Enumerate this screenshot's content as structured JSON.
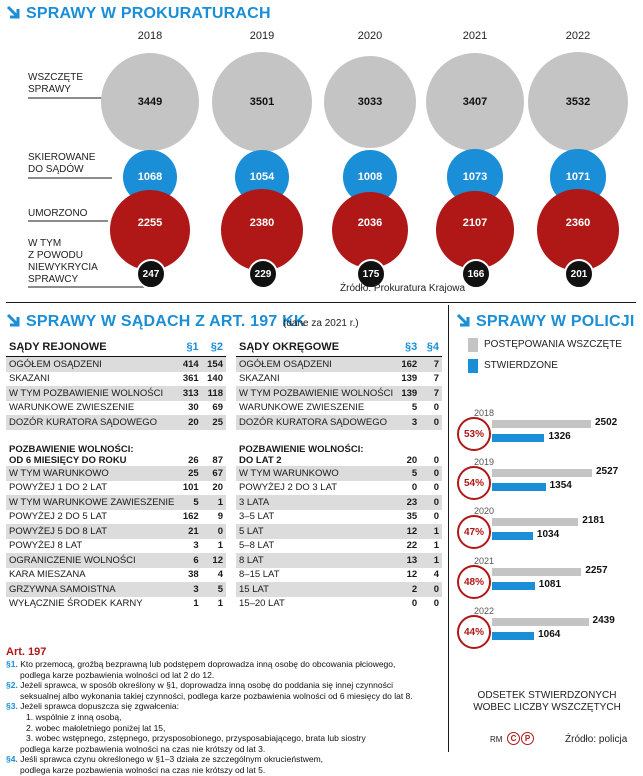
{
  "colors": {
    "accent_blue": "#1a8ed6",
    "red": "#b01717",
    "gray": "#c4c4c4",
    "black": "#111111"
  },
  "top": {
    "title": "SPRAWY W PROKURATURACH",
    "labels": {
      "started": "WSZCZĘTE\nSPRAWY",
      "referred": "SKIEROWANE\nDO SĄDÓW",
      "discontinued": "UMORZONO",
      "no_perpetrator": "W TYM\nZ POWODU\nNIEWYKRYCIA\nSPRAWCY"
    },
    "source": "Źródło: Prokuratura Krajowa"
  },
  "chart_data": [
    {
      "type": "bubble",
      "title": "SPRAWY W PROKURATURACH",
      "categories": [
        "2018",
        "2019",
        "2020",
        "2021",
        "2022"
      ],
      "series": [
        {
          "name": "WSZCZĘTE SPRAWY",
          "values": [
            3449,
            3501,
            3033,
            3407,
            3532
          ]
        },
        {
          "name": "SKIEROWANE DO SĄDÓW",
          "values": [
            1068,
            1054,
            1008,
            1073,
            1071
          ]
        },
        {
          "name": "UMORZONO",
          "values": [
            2255,
            2380,
            2036,
            2107,
            2360
          ]
        },
        {
          "name": "W TYM Z POWODU NIEWYKRYCIA SPRAWCY",
          "values": [
            247,
            229,
            175,
            166,
            201
          ]
        }
      ]
    },
    {
      "type": "bar",
      "title": "SPRAWY W POLICJI",
      "categories": [
        "2018",
        "2019",
        "2020",
        "2021",
        "2022"
      ],
      "series": [
        {
          "name": "POSTĘPOWANIA WSZCZĘTE",
          "values": [
            2502,
            2527,
            2181,
            2257,
            2439
          ]
        },
        {
          "name": "STWIERDZONE",
          "values": [
            1326,
            1354,
            1034,
            1081,
            1064
          ]
        }
      ],
      "annotation_values": [
        "53%",
        "54%",
        "47%",
        "48%",
        "44%"
      ],
      "annotation_label": "ODSETEK STWIERDZONYCH\nWOBEC LICZBY WSZCZĘTYCH",
      "xlim": [
        0,
        2600
      ]
    }
  ],
  "courts": {
    "title": "SPRAWY W SĄDACH Z ART. 197 KK",
    "subtitle": "(dane za 2021 r.)",
    "regional": {
      "header": "SĄDY REJONOWE",
      "cols": [
        "§1",
        "§2"
      ],
      "rows": [
        [
          "OGÓŁEM OSĄDZENI",
          "414",
          "154"
        ],
        [
          "SKAZANI",
          "361",
          "140"
        ],
        [
          "W TYM POZBAWIENIE WOLNOŚCI",
          "313",
          "118"
        ],
        [
          "WARUNKOWE ZWIESZENIE",
          "30",
          "69"
        ],
        [
          "DOZÓR KURATORA SĄDOWEGO",
          "20",
          "25"
        ]
      ],
      "sub_header_1": "POZBAWIENIE WOLNOŚCI:",
      "sub_header_2": "OD 6 MIESIĘCY DO ROKU",
      "sub_values": [
        "26",
        "87"
      ],
      "rows2": [
        [
          "W TYM WARUNKOWO",
          "25",
          "67"
        ],
        [
          "POWYŻEJ 1 DO 2 LAT",
          "101",
          "20"
        ],
        [
          "W TYM WARUNKOWE ZAWIESZENIE",
          "5",
          "1"
        ],
        [
          "POWYŻEJ 2 DO 5 LAT",
          "162",
          "9"
        ],
        [
          "POWYŻEJ 5 DO 8 LAT",
          "21",
          "0"
        ],
        [
          "POWYŻEJ 8 LAT",
          "3",
          "1"
        ],
        [
          "OGRANICZENIE WOLNOŚCI",
          "6",
          "12"
        ],
        [
          "KARA MIESZANA",
          "38",
          "4"
        ],
        [
          "GRZYWNA SAMOISTNA",
          "3",
          "5"
        ],
        [
          "WYŁĄCZNIE ŚRODEK KARNY",
          "1",
          "1"
        ]
      ]
    },
    "district": {
      "header": "SĄDY OKRĘGOWE",
      "cols": [
        "§3",
        "§4"
      ],
      "rows": [
        [
          "OGÓŁEM OSĄDZENI",
          "162",
          "7"
        ],
        [
          "SKAZANI",
          "139",
          "7"
        ],
        [
          "W TYM POZBAWIENIE WOLNOŚCI",
          "139",
          "7"
        ],
        [
          "WARUNKOWE ZWIESZENIE",
          "5",
          "0"
        ],
        [
          "DOZÓR KURATORA SĄDOWEGO",
          "3",
          "0"
        ]
      ],
      "sub_header_1": "POZBAWIENIE WOLNOŚCI:",
      "sub_header_2": "DO LAT 2",
      "sub_values": [
        "20",
        "0"
      ],
      "rows2": [
        [
          "W TYM WARUNKOWO",
          "5",
          "0"
        ],
        [
          "POWYŻEJ 2 DO 3 LAT",
          "0",
          "0"
        ],
        [
          "3 LATA",
          "23",
          "0"
        ],
        [
          "3–5 LAT",
          "35",
          "0"
        ],
        [
          "5 LAT",
          "12",
          "1"
        ],
        [
          "5–8 LAT",
          "22",
          "1"
        ],
        [
          "8 LAT",
          "13",
          "1"
        ],
        [
          "8–15 LAT",
          "12",
          "4"
        ],
        [
          "15 LAT",
          "2",
          "0"
        ],
        [
          "15–20 LAT",
          "0",
          "0"
        ]
      ]
    }
  },
  "article": {
    "title": "Art. 197",
    "paragraphs": [
      {
        "num": "§1.",
        "lines": [
          "Kto przemocą, groźbą bezprawną lub podstępem doprowadza inną osobę do obcowania płciowego,",
          "podlega karze pozbawienia wolności od lat 2 do 12."
        ]
      },
      {
        "num": "§2.",
        "lines": [
          "Jeżeli sprawca, w sposób określony w §1, doprowadza inną osobę do poddania się innej czynności",
          "seksualnej albo wykonania takiej czynności, podlega karze pozbawienia wolności od 6 miesięcy do lat 8."
        ]
      },
      {
        "num": "§3.",
        "lines": [
          "Jeżeli sprawca dopuszcza się zgwałcenia:",
          "1. wspólnie z inną osobą,",
          "2. wobec małoletniego poniżej lat 15,",
          "3. wobec wstępnego, zstępnego, przysposobionego, przysposabiającego, brata lub siostry",
          "podlega karze pozbawienia wolności na czas nie krótszy od lat 3."
        ]
      },
      {
        "num": "§4.",
        "lines": [
          "Jeśli sprawca czynu określonego w §1–3 działa ze szczególnym okrucieństwem,",
          "podlega karze pozbawienia wolności na czas nie krótszy od lat 5."
        ]
      }
    ]
  },
  "police": {
    "title": "SPRAWY W POLICJI",
    "legend": [
      "POSTĘPOWANIA WSZCZĘTE",
      "STWIERDZONE"
    ],
    "source": "Źródło: policja"
  },
  "footer": {
    "credit": "RM"
  }
}
